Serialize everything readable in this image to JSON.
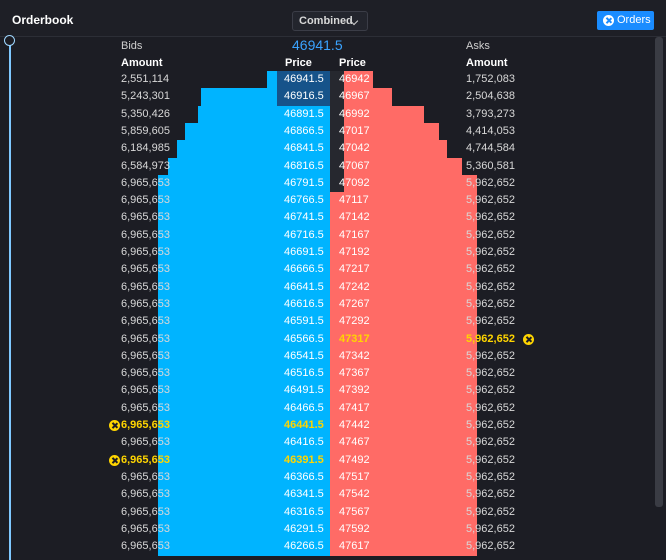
{
  "header": {
    "title": "Orderbook",
    "view_select": "Combined",
    "orders_label": "Orders"
  },
  "mid_price": "46941.5",
  "bids_label": "Bids",
  "asks_label": "Asks",
  "columns": {
    "amount": "Amount",
    "price": "Price"
  },
  "colors": {
    "bid": "#00b4ff",
    "ask": "#ff6b66",
    "highlight": "#ffd500",
    "accent": "#1a8cff"
  },
  "depth_max": 7500000,
  "rows": [
    {
      "bid_amount": "2,551,114",
      "bid_price": "46941.5",
      "ask_price": "46942",
      "ask_amount": "1,752,083",
      "bid_depth": 2551114,
      "ask_depth": 1752083,
      "bid_order": false,
      "ask_order": false
    },
    {
      "bid_amount": "5,243,301",
      "bid_price": "46916.5",
      "ask_price": "46967",
      "ask_amount": "2,504,638",
      "bid_depth": 5243301,
      "ask_depth": 2504638,
      "bid_order": false,
      "ask_order": false
    },
    {
      "bid_amount": "5,350,426",
      "bid_price": "46891.5",
      "ask_price": "46992",
      "ask_amount": "3,793,273",
      "bid_depth": 5350426,
      "ask_depth": 3793273,
      "bid_order": false,
      "ask_order": false
    },
    {
      "bid_amount": "5,859,605",
      "bid_price": "46866.5",
      "ask_price": "47017",
      "ask_amount": "4,414,053",
      "bid_depth": 5859605,
      "ask_depth": 4414053,
      "bid_order": false,
      "ask_order": false
    },
    {
      "bid_amount": "6,184,985",
      "bid_price": "46841.5",
      "ask_price": "47042",
      "ask_amount": "4,744,584",
      "bid_depth": 6184985,
      "ask_depth": 4744584,
      "bid_order": false,
      "ask_order": false
    },
    {
      "bid_amount": "6,584,973",
      "bid_price": "46816.5",
      "ask_price": "47067",
      "ask_amount": "5,360,581",
      "bid_depth": 6584973,
      "ask_depth": 5360581,
      "bid_order": false,
      "ask_order": false
    },
    {
      "bid_amount": "6,965,653",
      "bid_price": "46791.5",
      "ask_price": "47092",
      "ask_amount": "5,962,652",
      "bid_depth": 6965653,
      "ask_depth": 5962652,
      "bid_order": false,
      "ask_order": false
    },
    {
      "bid_amount": "6,965,653",
      "bid_price": "46766.5",
      "ask_price": "47117",
      "ask_amount": "5,962,652",
      "bid_depth": 6965653,
      "ask_depth": 5962652,
      "bid_order": false,
      "ask_order": false
    },
    {
      "bid_amount": "6,965,653",
      "bid_price": "46741.5",
      "ask_price": "47142",
      "ask_amount": "5,962,652",
      "bid_depth": 6965653,
      "ask_depth": 5962652,
      "bid_order": false,
      "ask_order": false
    },
    {
      "bid_amount": "6,965,653",
      "bid_price": "46716.5",
      "ask_price": "47167",
      "ask_amount": "5,962,652",
      "bid_depth": 6965653,
      "ask_depth": 5962652,
      "bid_order": false,
      "ask_order": false
    },
    {
      "bid_amount": "6,965,653",
      "bid_price": "46691.5",
      "ask_price": "47192",
      "ask_amount": "5,962,652",
      "bid_depth": 6965653,
      "ask_depth": 5962652,
      "bid_order": false,
      "ask_order": false
    },
    {
      "bid_amount": "6,965,653",
      "bid_price": "46666.5",
      "ask_price": "47217",
      "ask_amount": "5,962,652",
      "bid_depth": 6965653,
      "ask_depth": 5962652,
      "bid_order": false,
      "ask_order": false
    },
    {
      "bid_amount": "6,965,653",
      "bid_price": "46641.5",
      "ask_price": "47242",
      "ask_amount": "5,962,652",
      "bid_depth": 6965653,
      "ask_depth": 5962652,
      "bid_order": false,
      "ask_order": false
    },
    {
      "bid_amount": "6,965,653",
      "bid_price": "46616.5",
      "ask_price": "47267",
      "ask_amount": "5,962,652",
      "bid_depth": 6965653,
      "ask_depth": 5962652,
      "bid_order": false,
      "ask_order": false
    },
    {
      "bid_amount": "6,965,653",
      "bid_price": "46591.5",
      "ask_price": "47292",
      "ask_amount": "5,962,652",
      "bid_depth": 6965653,
      "ask_depth": 5962652,
      "bid_order": false,
      "ask_order": false
    },
    {
      "bid_amount": "6,965,653",
      "bid_price": "46566.5",
      "ask_price": "47317",
      "ask_amount": "5,962,652",
      "bid_depth": 6965653,
      "ask_depth": 5962652,
      "bid_order": false,
      "ask_order": true
    },
    {
      "bid_amount": "6,965,653",
      "bid_price": "46541.5",
      "ask_price": "47342",
      "ask_amount": "5,962,652",
      "bid_depth": 6965653,
      "ask_depth": 5962652,
      "bid_order": false,
      "ask_order": false
    },
    {
      "bid_amount": "6,965,653",
      "bid_price": "46516.5",
      "ask_price": "47367",
      "ask_amount": "5,962,652",
      "bid_depth": 6965653,
      "ask_depth": 5962652,
      "bid_order": false,
      "ask_order": false
    },
    {
      "bid_amount": "6,965,653",
      "bid_price": "46491.5",
      "ask_price": "47392",
      "ask_amount": "5,962,652",
      "bid_depth": 6965653,
      "ask_depth": 5962652,
      "bid_order": false,
      "ask_order": false
    },
    {
      "bid_amount": "6,965,653",
      "bid_price": "46466.5",
      "ask_price": "47417",
      "ask_amount": "5,962,652",
      "bid_depth": 6965653,
      "ask_depth": 5962652,
      "bid_order": false,
      "ask_order": false
    },
    {
      "bid_amount": "6,965,653",
      "bid_price": "46441.5",
      "ask_price": "47442",
      "ask_amount": "5,962,652",
      "bid_depth": 6965653,
      "ask_depth": 5962652,
      "bid_order": true,
      "ask_order": false
    },
    {
      "bid_amount": "6,965,653",
      "bid_price": "46416.5",
      "ask_price": "47467",
      "ask_amount": "5,962,652",
      "bid_depth": 6965653,
      "ask_depth": 5962652,
      "bid_order": false,
      "ask_order": false
    },
    {
      "bid_amount": "6,965,653",
      "bid_price": "46391.5",
      "ask_price": "47492",
      "ask_amount": "5,962,652",
      "bid_depth": 6965653,
      "ask_depth": 5962652,
      "bid_order": true,
      "ask_order": false
    },
    {
      "bid_amount": "6,965,653",
      "bid_price": "46366.5",
      "ask_price": "47517",
      "ask_amount": "5,962,652",
      "bid_depth": 6965653,
      "ask_depth": 5962652,
      "bid_order": false,
      "ask_order": false
    },
    {
      "bid_amount": "6,965,653",
      "bid_price": "46341.5",
      "ask_price": "47542",
      "ask_amount": "5,962,652",
      "bid_depth": 6965653,
      "ask_depth": 5962652,
      "bid_order": false,
      "ask_order": false
    },
    {
      "bid_amount": "6,965,653",
      "bid_price": "46316.5",
      "ask_price": "47567",
      "ask_amount": "5,962,652",
      "bid_depth": 6965653,
      "ask_depth": 5962652,
      "bid_order": false,
      "ask_order": false
    },
    {
      "bid_amount": "6,965,653",
      "bid_price": "46291.5",
      "ask_price": "47592",
      "ask_amount": "5,962,652",
      "bid_depth": 6965653,
      "ask_depth": 5962652,
      "bid_order": false,
      "ask_order": false
    },
    {
      "bid_amount": "6,965,653",
      "bid_price": "46266.5",
      "ask_price": "47617",
      "ask_amount": "5,962,652",
      "bid_depth": 6965653,
      "ask_depth": 5962652,
      "bid_order": false,
      "ask_order": false
    }
  ]
}
